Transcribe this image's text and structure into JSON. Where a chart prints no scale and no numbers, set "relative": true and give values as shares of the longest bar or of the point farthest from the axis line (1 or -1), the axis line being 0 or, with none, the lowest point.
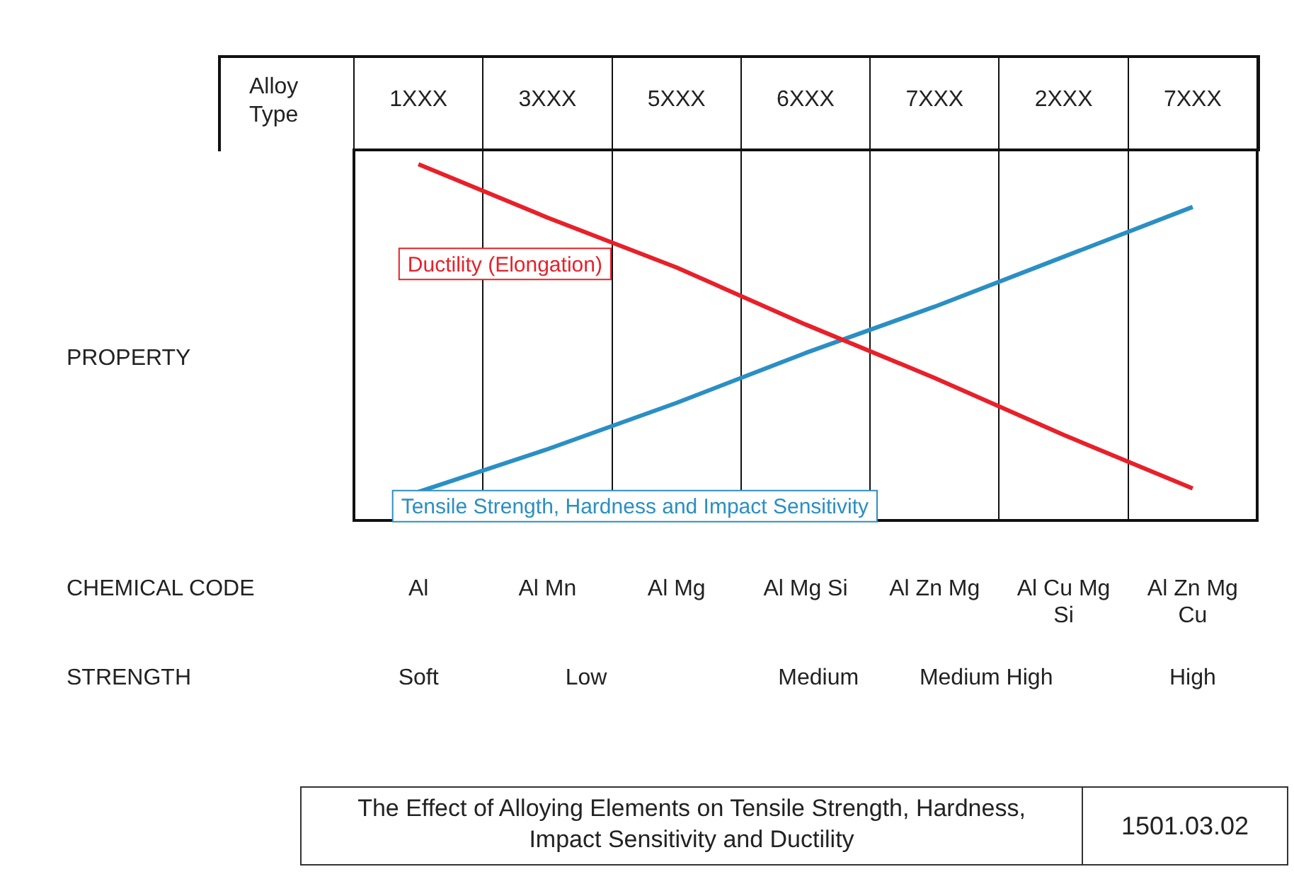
{
  "chart_data": {
    "type": "line",
    "relative": true,
    "title": "The Effect of Alloying Elements on Tensile Strength, Hardness, Impact Sensitivity and Ductility",
    "xlabel": "Alloy Type",
    "categories": [
      "1XXX",
      "3XXX",
      "5XXX",
      "6XXX",
      "7XXX",
      "2XXX",
      "7XXX"
    ],
    "series": [
      {
        "name": "Ductility (Elongation)",
        "color": "#e8202a",
        "values": [
          1,
          0.85,
          0.71,
          0.55,
          0.4,
          0.24,
          0.09
        ]
      },
      {
        "name": "Tensile Strength, Hardness and Impact Sensitivity",
        "color": "#2a8fc4",
        "values": [
          0.08,
          0.2,
          0.33,
          0.47,
          0.6,
          0.74,
          0.88
        ]
      }
    ],
    "annotations": [
      "CHEMICAL CODE",
      "Al",
      "Al Mn",
      "Al Mg",
      "Al Mg Si",
      "Al Zn Mg",
      "Al Cu Mg Si",
      "Al Zn Mg Cu",
      "STRENGTH",
      "Soft",
      "Low",
      "Medium",
      "Medium High",
      "High",
      "1501.03.02",
      "PROPERTY"
    ],
    "legend": false,
    "marker": "none",
    "grid": "x"
  }
}
